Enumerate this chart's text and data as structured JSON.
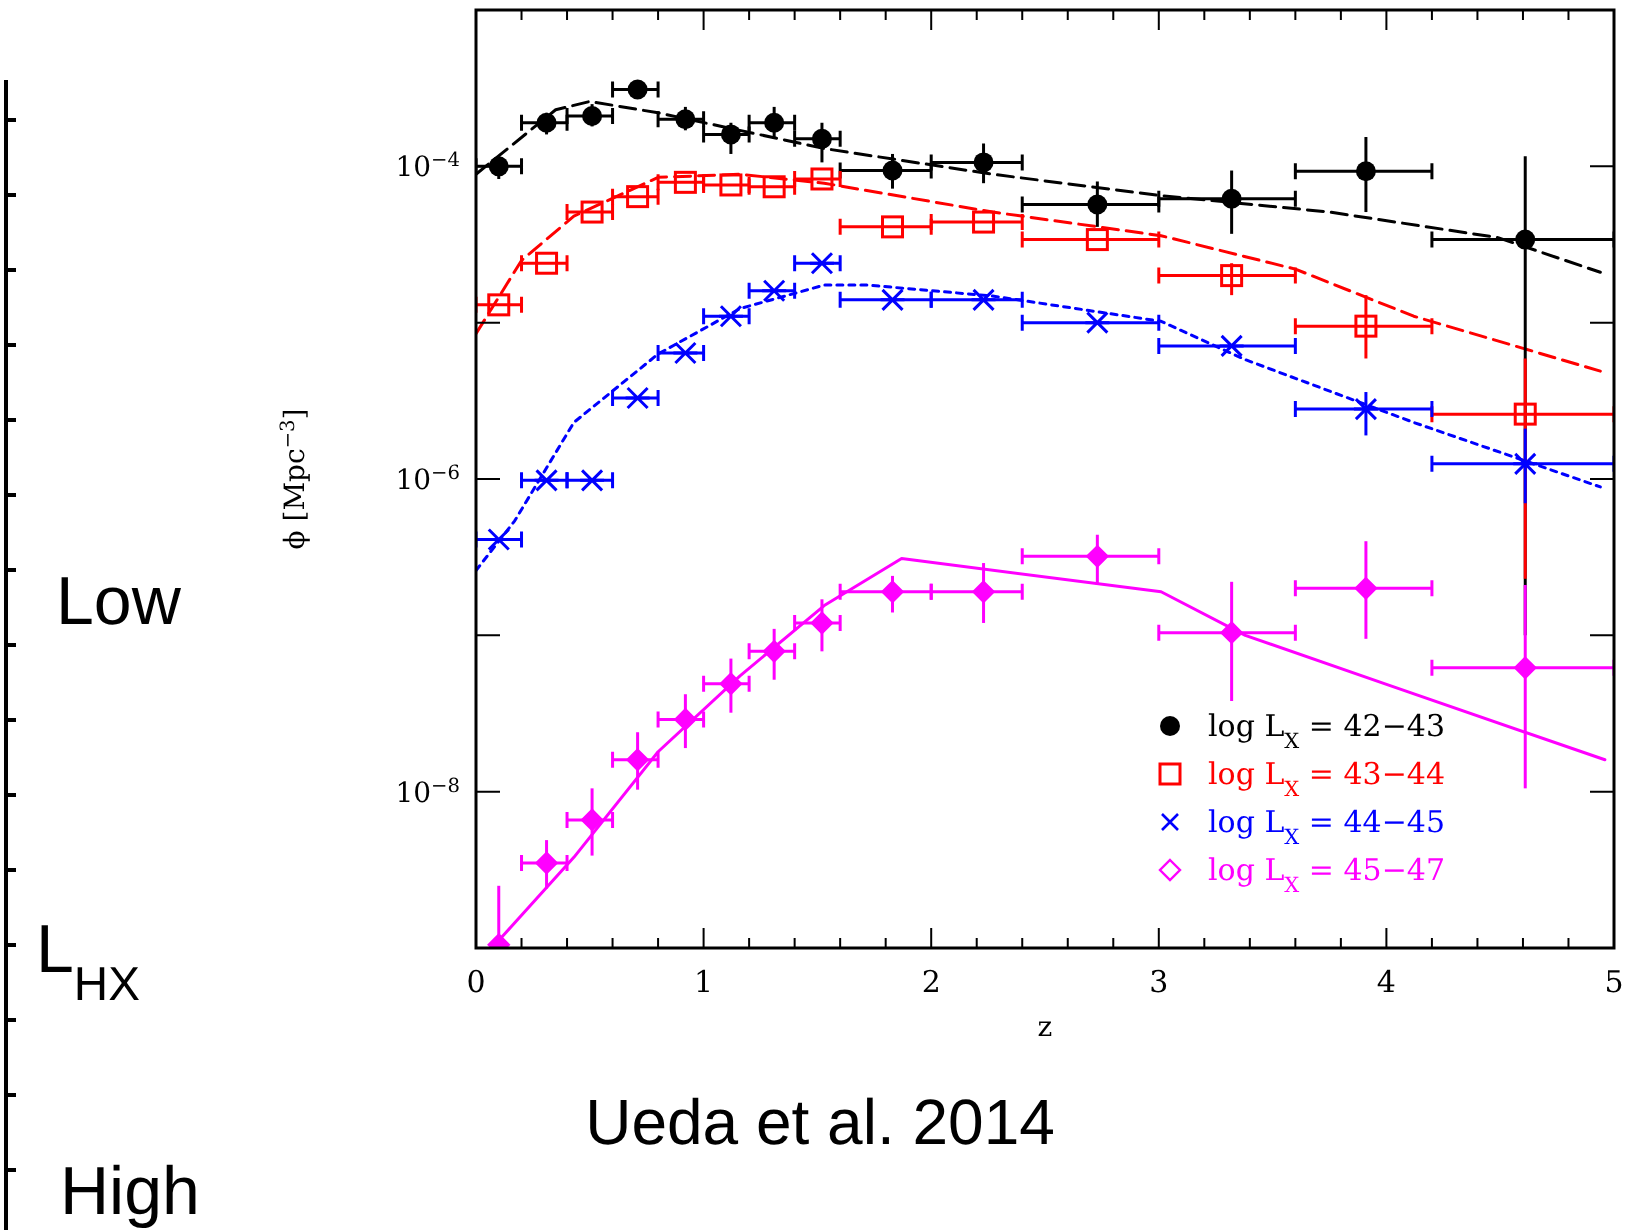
{
  "chart_data": {
    "type": "scatter",
    "xlabel": "z",
    "ylabel": "ϕ [Mpc$^{−3}$]",
    "log": "y",
    "grid": false,
    "legend": "bottom right",
    "xlim": [
      0,
      5
    ],
    "ylim": [
      1e-09,
      0.001
    ],
    "xticks": [
      0,
      {
        "value": 0.2,
        "label": null
      },
      {
        "value": 0.4,
        "label": null
      },
      {
        "value": 0.6,
        "label": null
      },
      {
        "value": 0.8,
        "label": null
      },
      1,
      {
        "value": 1.2,
        "label": null
      },
      {
        "value": 1.4,
        "label": null
      },
      {
        "value": 1.6,
        "label": null
      },
      {
        "value": 1.8,
        "label": null
      },
      2,
      {
        "value": 2.2,
        "label": null
      },
      {
        "value": 2.4,
        "label": null
      },
      {
        "value": 2.6,
        "label": null
      },
      {
        "value": 2.8,
        "label": null
      },
      3,
      {
        "value": 3.2,
        "label": null
      },
      {
        "value": 3.4,
        "label": null
      },
      {
        "value": 3.6,
        "label": null
      },
      {
        "value": 3.8,
        "label": null
      },
      4,
      {
        "value": 4.2,
        "label": null
      },
      {
        "value": 4.4,
        "label": null
      },
      {
        "value": 4.6,
        "label": null
      },
      {
        "value": 4.8,
        "label": null
      },
      5
    ],
    "yticks": [
      {
        "value": 1e-09,
        "label": null
      },
      {
        "value": 1e-08,
        "label": "10$^{−8}$"
      },
      {
        "value": 1e-07,
        "label": null
      },
      {
        "value": 1e-06,
        "label": "10$^{−6}$"
      },
      {
        "value": 1e-05,
        "label": null
      },
      {
        "value": 0.0001,
        "label": "10$^{−4}$"
      },
      {
        "value": 0.001,
        "label": null
      }
    ],
    "annotations": [
      "Ueda et al. 2014",
      "Low",
      "L$_{HX}$",
      "High"
    ],
    "series": [
      {
        "name": "log L$_{X}$ = 42−43",
        "color": "#000000",
        "marker": "circle",
        "x": [
          0.1,
          0.31,
          0.51,
          0.71,
          0.92,
          1.12,
          1.31,
          1.52,
          1.83,
          2.23,
          2.73,
          3.32,
          3.91,
          4.61
        ],
        "values": [
          0.0001,
          0.00019,
          0.00021,
          0.00031,
          0.0002,
          0.00016,
          0.00019,
          0.00015,
          9.4e-05,
          0.000106,
          5.7e-05,
          6.2e-05,
          9.3e-05,
          3.4e-05
        ],
        "errors": [
          [
            8.3e-05,
            0.000116
          ],
          [
            0.00016,
            0.00022
          ],
          [
            0.00018,
            0.00025
          ],
          [
            0.00027,
            0.00035
          ],
          [
            0.00017,
            0.00024
          ],
          [
            0.00012,
            0.00019
          ],
          [
            0.00015,
            0.00024
          ],
          [
            0.000106,
            0.00019
          ],
          [
            7.2e-05,
            0.00012
          ],
          [
            7.8e-05,
            0.00014
          ],
          [
            4.1e-05,
            8e-05
          ],
          [
            3.7e-05,
            9.4e-05
          ],
          [
            5.1e-05,
            0.000154
          ],
          [
            1e-07,
            0.000116
          ]
        ],
        "xerrors": [
          [
            0,
            0.2
          ],
          [
            0.2,
            0.4
          ],
          [
            0.4,
            0.6
          ],
          [
            0.6,
            0.8
          ],
          [
            0.8,
            1.0
          ],
          [
            1.0,
            1.2
          ],
          [
            1.2,
            1.4
          ],
          [
            1.4,
            1.6
          ],
          [
            1.6,
            2.0
          ],
          [
            2.0,
            2.4
          ],
          [
            2.4,
            3.0
          ],
          [
            3.0,
            3.6
          ],
          [
            3.6,
            4.2
          ],
          [
            4.2,
            5.0
          ]
        ]
      },
      {
        "name": "log L$_{X}$ = 43−44",
        "color": "#ff0000",
        "marker": "square",
        "x": [
          0.1,
          0.31,
          0.51,
          0.71,
          0.92,
          1.12,
          1.31,
          1.52,
          1.83,
          2.23,
          2.73,
          3.32,
          3.91,
          4.61
        ],
        "values": [
          1.3e-05,
          2.4e-05,
          5.1e-05,
          6.4e-05,
          7.9e-05,
          7.6e-05,
          7.4e-05,
          8.3e-05,
          4.1e-05,
          4.4e-05,
          3.4e-05,
          2e-05,
          9.5e-06,
          2.6e-06
        ],
        "errors": [
          null,
          null,
          null,
          null,
          null,
          null,
          null,
          null,
          null,
          null,
          null,
          [
            1.5e-05,
            2.4e-05
          ],
          [
            5.9e-06,
            1.5e-05
          ],
          [
            2.3e-07,
            5.9e-06
          ]
        ],
        "xerrors": [
          [
            0,
            0.2
          ],
          [
            0.2,
            0.4
          ],
          [
            0.4,
            0.6
          ],
          [
            0.6,
            0.8
          ],
          [
            0.8,
            1.0
          ],
          [
            1.0,
            1.2
          ],
          [
            1.2,
            1.4
          ],
          [
            1.4,
            1.6
          ],
          [
            1.6,
            2.0
          ],
          [
            2.0,
            2.4
          ],
          [
            2.4,
            3.0
          ],
          [
            3.0,
            3.6
          ],
          [
            3.6,
            4.2
          ],
          [
            4.2,
            5.0
          ]
        ]
      },
      {
        "name": "log L$_{X}$ = 44−45",
        "color": "#0000ff",
        "marker": "cross",
        "x": [
          0.1,
          0.31,
          0.51,
          0.71,
          0.92,
          1.12,
          1.31,
          1.52,
          1.83,
          2.23,
          2.73,
          3.32,
          3.91,
          4.61
        ],
        "values": [
          4.1e-07,
          9.8e-07,
          9.8e-07,
          3.3e-06,
          6.4e-06,
          1.1e-05,
          1.6e-05,
          2.4e-05,
          1.4e-05,
          1.4e-05,
          1e-05,
          7.1e-06,
          2.8e-06,
          1.25e-06
        ],
        "errors": [
          null,
          null,
          null,
          null,
          null,
          null,
          null,
          null,
          null,
          null,
          null,
          null,
          [
            1.9e-06,
            3.6e-06
          ],
          [
            7e-07,
            2.1e-06
          ]
        ],
        "xerrors": [
          [
            0,
            0.2
          ],
          [
            0.2,
            0.4
          ],
          [
            0.4,
            0.6
          ],
          [
            0.6,
            0.8
          ],
          [
            0.8,
            1.0
          ],
          [
            1.0,
            1.2
          ],
          [
            1.2,
            1.4
          ],
          [
            1.4,
            1.6
          ],
          [
            1.6,
            2.0
          ],
          [
            2.0,
            2.4
          ],
          [
            2.4,
            3.0
          ],
          [
            3.0,
            3.6
          ],
          [
            3.6,
            4.2
          ],
          [
            4.2,
            5.0
          ]
        ]
      },
      {
        "name": "log L$_{X}$ = 45−47",
        "color": "#ff00ff",
        "marker": "diamond",
        "x": [
          0.1,
          0.31,
          0.51,
          0.71,
          0.92,
          1.12,
          1.31,
          1.52,
          1.83,
          2.23,
          2.73,
          3.32,
          3.91,
          4.61
        ],
        "values": [
          1.05e-09,
          3.5e-09,
          6.6e-09,
          1.6e-08,
          2.9e-08,
          4.9e-08,
          7.9e-08,
          1.2e-07,
          1.9e-07,
          1.9e-07,
          3.2e-07,
          1.04e-07,
          2e-07,
          6.2e-08
        ],
        "errors": [
          [
            1e-09,
            2.5e-09
          ],
          [
            2.4e-09,
            4.9e-09
          ],
          [
            3.9e-09,
            1.05e-08
          ],
          [
            1.03e-08,
            2.4e-08
          ],
          [
            1.9e-08,
            4.2e-08
          ],
          [
            3.2e-08,
            7.1e-08
          ],
          [
            5.2e-08,
            1.1e-07
          ],
          [
            7.9e-08,
            1.7e-07
          ],
          [
            1.4e-07,
            2.4e-07
          ],
          [
            1.2e-07,
            2.9e-07
          ],
          [
            2.1e-07,
            4.4e-07
          ],
          [
            3.8e-08,
            2.2e-07
          ],
          [
            9.5e-08,
            4e-07
          ],
          [
            1.05e-08,
            2.1e-07
          ]
        ],
        "xerrors": [
          null,
          [
            0.2,
            0.4
          ],
          [
            0.4,
            0.6
          ],
          [
            0.6,
            0.8
          ],
          [
            0.8,
            1.0
          ],
          [
            1.0,
            1.2
          ],
          [
            1.2,
            1.4
          ],
          [
            1.4,
            1.6
          ],
          [
            1.6,
            2.0
          ],
          [
            2.0,
            2.4
          ],
          [
            2.4,
            3.0
          ],
          [
            3.0,
            3.6
          ],
          [
            3.6,
            4.2
          ],
          [
            4.2,
            5.0
          ]
        ]
      },
      {
        "type": "line",
        "color": "#000000",
        "line_style": "dashed",
        "x": [
          0,
          0.35,
          0.5,
          0.8,
          1.53,
          2.27,
          3.01,
          3.75,
          4.49,
          4.94
        ],
        "values": [
          8.9e-05,
          0.00023,
          0.00026,
          0.00022,
          0.00013,
          8.9e-05,
          6.5e-05,
          5.1e-05,
          3.5e-05,
          2.1e-05
        ]
      },
      {
        "type": "line",
        "color": "#ff0000",
        "line_style": "dashed",
        "x": [
          0,
          0.2,
          0.43,
          0.8,
          1.16,
          1.53,
          2.27,
          3.01,
          3.6,
          4.12,
          4.94
        ],
        "values": [
          8.5e-06,
          2.5e-05,
          4.8e-05,
          8.5e-05,
          8.9e-05,
          7.8e-05,
          5.1e-05,
          3.6e-05,
          2.2e-05,
          1.1e-05,
          4.9e-06
        ]
      },
      {
        "type": "line",
        "color": "#0000ff",
        "line_style": "dotted",
        "x": [
          0,
          0.17,
          0.43,
          0.8,
          1.16,
          1.53,
          1.72,
          2.27,
          3.01,
          3.38,
          4.12,
          4.94
        ],
        "values": [
          2.6e-07,
          5.4e-07,
          2.3e-06,
          6.3e-06,
          1.23e-05,
          1.74e-05,
          1.74e-05,
          1.48e-05,
          1.02e-05,
          5.8e-06,
          2.3e-06,
          8.9e-07
        ]
      },
      {
        "type": "line",
        "color": "#ff00ff",
        "line_style": "solid",
        "x": [
          0.07,
          0.43,
          0.8,
          1.16,
          1.53,
          1.87,
          3.01,
          3.38,
          4.01,
          4.96
        ],
        "values": [
          1e-09,
          3.8e-09,
          1.8e-08,
          5.5e-08,
          1.55e-07,
          3.1e-07,
          1.9e-07,
          1e-07,
          4.8e-08,
          1.6e-08
        ]
      }
    ]
  }
}
